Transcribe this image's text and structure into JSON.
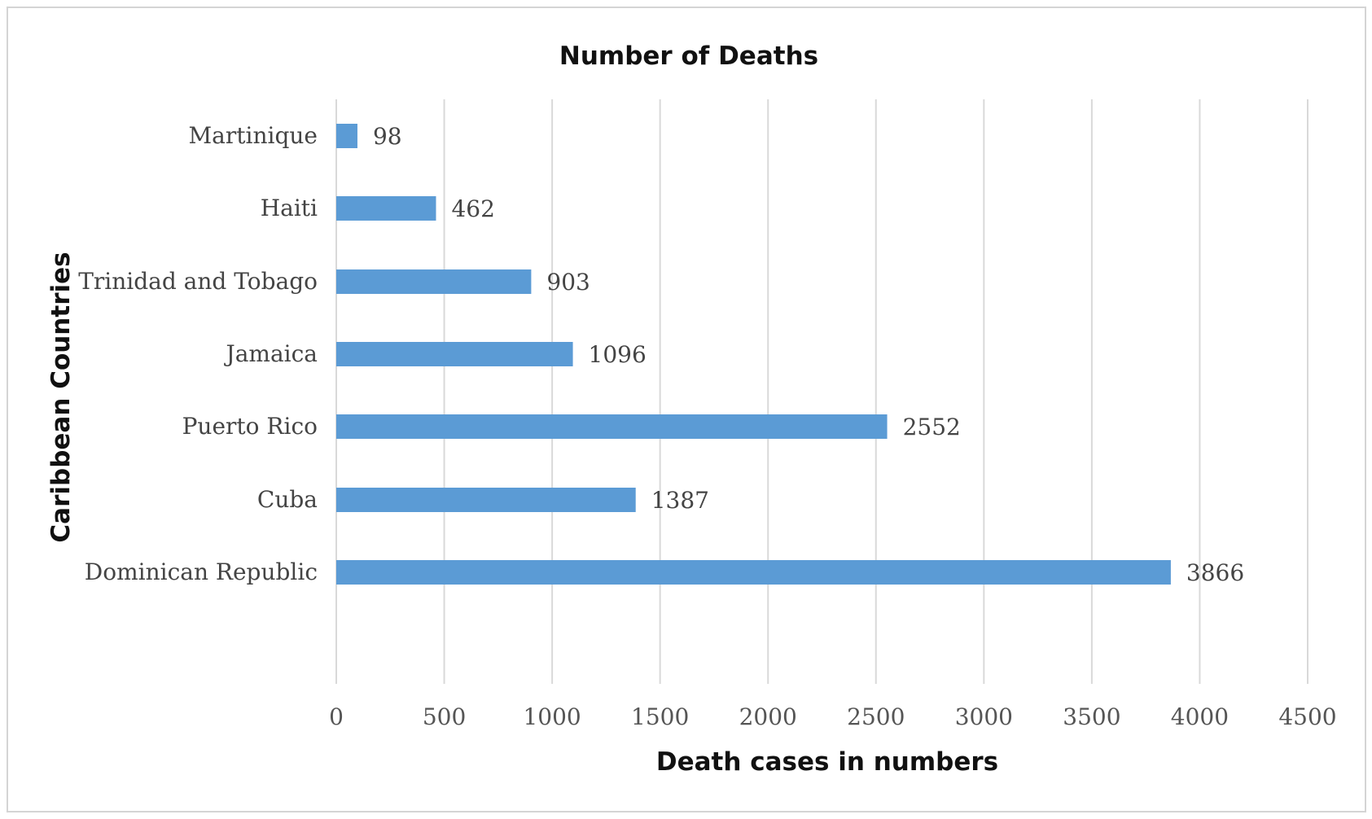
{
  "chart_data": {
    "type": "bar",
    "orientation": "horizontal",
    "title": "Number of Deaths",
    "xlabel": "Death cases in numbers",
    "ylabel": "Caribbean Countries",
    "categories": [
      "Martinique",
      "Haiti",
      "Trinidad and Tobago",
      "Jamaica",
      "Puerto Rico",
      "Cuba",
      "Dominican Republic"
    ],
    "values": [
      98,
      462,
      903,
      1096,
      2552,
      1387,
      3866
    ],
    "data_labels": [
      "98",
      "462",
      "903",
      "1096",
      "2552",
      "1387",
      "3866"
    ],
    "xlim": [
      0,
      4500
    ],
    "x_ticks": [
      0,
      500,
      1000,
      1500,
      2000,
      2500,
      3000,
      3500,
      4000,
      4500
    ],
    "x_tick_labels": [
      "0",
      "500",
      "1000",
      "1500",
      "2000",
      "2500",
      "3000",
      "3500",
      "4000",
      "4500"
    ],
    "grid": "vertical",
    "legend": "none",
    "bar_color": "#5b9bd5",
    "grid_color": "#d9d9d9"
  }
}
